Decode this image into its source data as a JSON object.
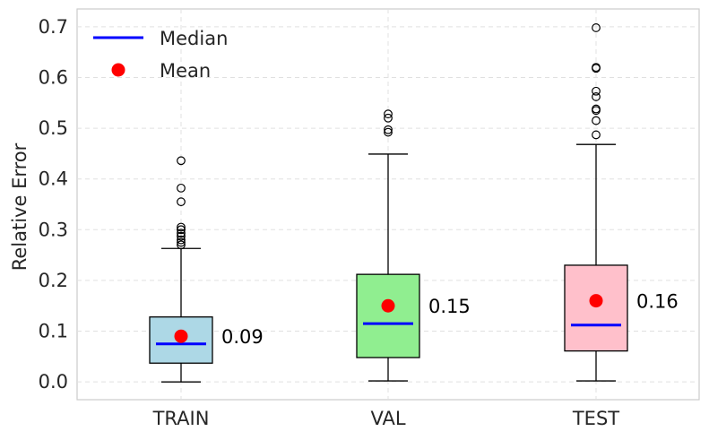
{
  "chart_data": {
    "type": "box",
    "title": "",
    "xlabel": "",
    "ylabel": "Relative Error",
    "ylim": [
      -0.035,
      0.735
    ],
    "yticks": [
      0.0,
      0.1,
      0.2,
      0.3,
      0.4,
      0.5,
      0.6,
      0.7
    ],
    "ytick_labels": [
      "0.0",
      "0.1",
      "0.2",
      "0.3",
      "0.4",
      "0.5",
      "0.6",
      "0.7"
    ],
    "grid": true,
    "legend": {
      "position": "top-left",
      "entries": [
        {
          "label": "Median",
          "marker": "line",
          "color": "#0000ff"
        },
        {
          "label": "Mean",
          "marker": "dot",
          "color": "#ff0000"
        }
      ]
    },
    "categories": [
      "TRAIN",
      "VAL",
      "TEST"
    ],
    "boxes": [
      {
        "name": "TRAIN",
        "color": "#add8e6",
        "whisker_low": 0.0,
        "q1": 0.037,
        "median": 0.075,
        "q3": 0.128,
        "whisker_high": 0.263,
        "mean": 0.09,
        "mean_label": "0.09",
        "outliers": [
          0.27,
          0.275,
          0.28,
          0.287,
          0.293,
          0.3,
          0.305,
          0.355,
          0.382,
          0.436
        ]
      },
      {
        "name": "VAL",
        "color": "#90ee90",
        "whisker_low": 0.002,
        "q1": 0.048,
        "median": 0.115,
        "q3": 0.212,
        "whisker_high": 0.449,
        "mean": 0.15,
        "mean_label": "0.15",
        "outliers": [
          0.492,
          0.497,
          0.52,
          0.528
        ]
      },
      {
        "name": "TEST",
        "color": "#ffc0cb",
        "whisker_low": 0.002,
        "q1": 0.061,
        "median": 0.112,
        "q3": 0.23,
        "whisker_high": 0.468,
        "mean": 0.16,
        "mean_label": "0.16",
        "outliers": [
          0.487,
          0.515,
          0.535,
          0.538,
          0.562,
          0.573,
          0.618,
          0.62,
          0.698
        ]
      }
    ],
    "colors": {
      "median": "#0000ff",
      "mean": "#ff0000",
      "grid": "#e0e0e0",
      "axes": "#cccccc"
    }
  }
}
